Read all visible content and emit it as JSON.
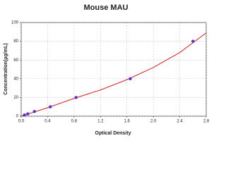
{
  "chart_data": {
    "type": "scatter",
    "title": "Mouse MAU",
    "x_label": "Optical Density",
    "y_label": "Concentration(μg/mL)",
    "xlim": [
      0,
      2.8
    ],
    "xticks": [
      {
        "value": 0,
        "label": "0.0"
      },
      0.4,
      0.8,
      1.2,
      1.6,
      {
        "value": 2,
        "label": "2.0"
      },
      2.4,
      2.8
    ],
    "ylim": [
      0,
      100
    ],
    "yticks": [
      0,
      20,
      40,
      60,
      80,
      100
    ],
    "grid": true,
    "series": [
      {
        "color": "#5a2fd0",
        "x": [
          0.05,
          0.1,
          0.2,
          0.44,
          0.83,
          1.65,
          2.6
        ],
        "values": [
          1.25,
          2.5,
          5,
          10,
          20,
          40,
          80
        ]
      }
    ],
    "curve": {
      "color": "#d62020",
      "x": [
        0,
        0.4,
        0.8,
        1.2,
        1.6,
        2.0,
        2.4,
        2.8
      ],
      "values": [
        0,
        9,
        19,
        28,
        39,
        52,
        68,
        89
      ]
    }
  }
}
